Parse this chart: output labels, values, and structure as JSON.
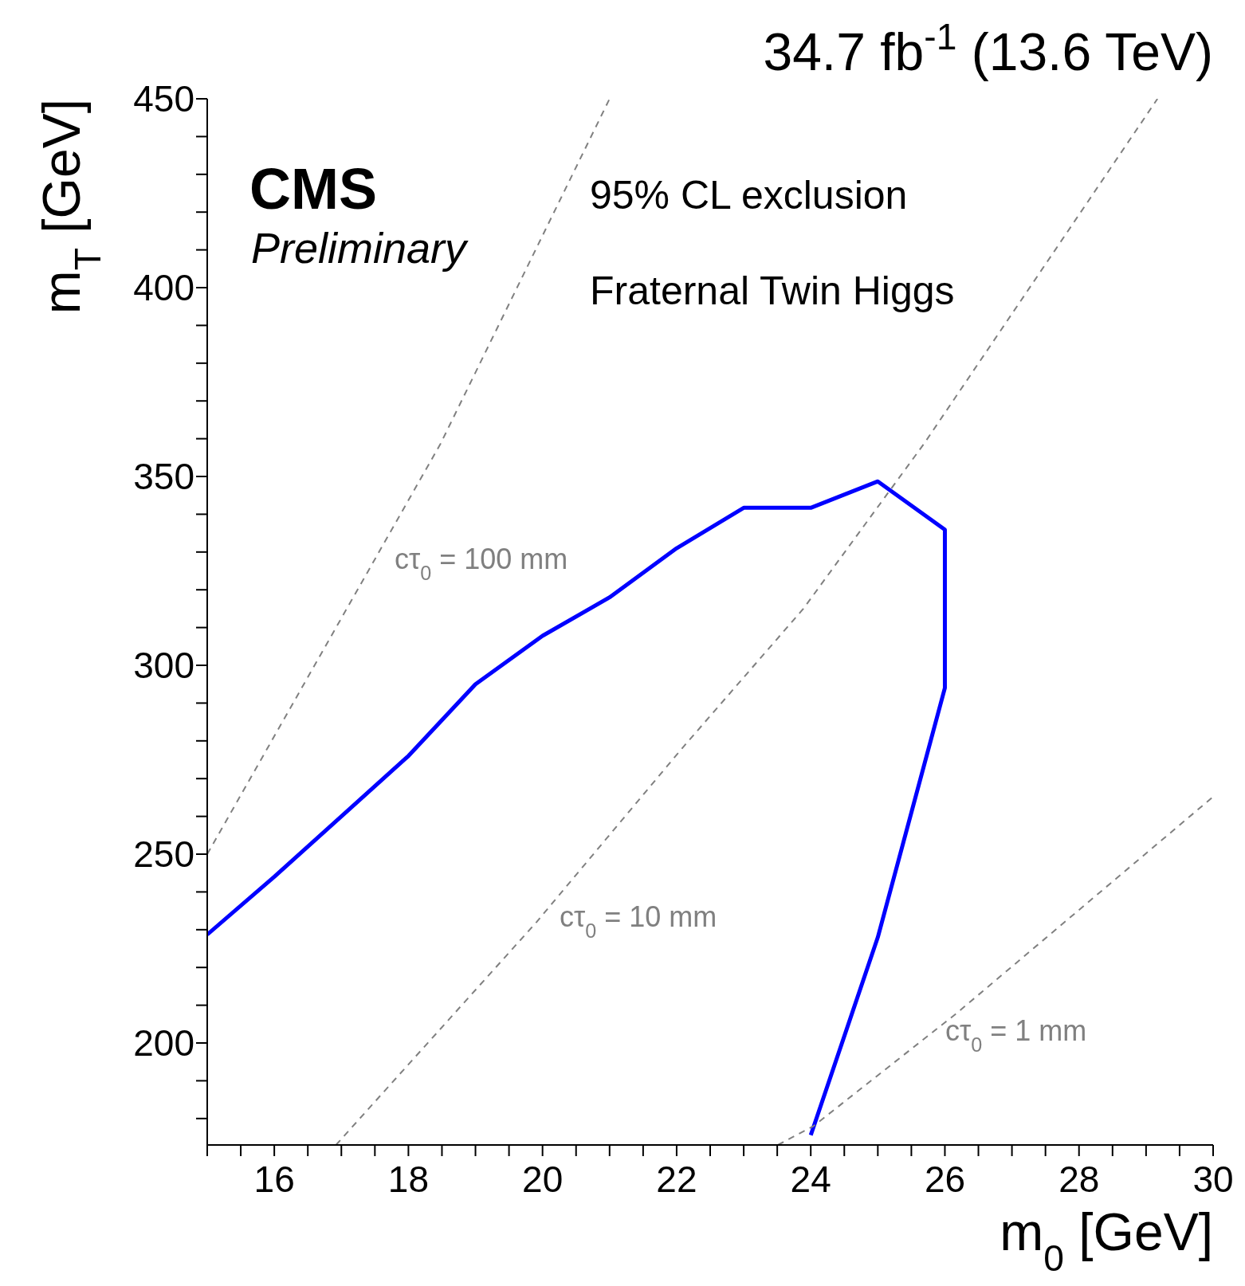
{
  "chart_data": {
    "type": "line",
    "title": "34.7 fb$^{-1}$ (13.6 TeV)",
    "xlabel": "m$_{0}$ [GeV]",
    "ylabel": "m$_{T}$ [GeV]",
    "xlim": [
      15,
      30
    ],
    "ylim": [
      173,
      450
    ],
    "xticks": [
      {
        "value": 15,
        "label": null
      },
      {
        "value": 15.5,
        "label": null
      },
      16,
      {
        "value": 16.5,
        "label": null
      },
      {
        "value": 17,
        "label": null
      },
      {
        "value": 17.5,
        "label": null
      },
      18,
      {
        "value": 18.5,
        "label": null
      },
      {
        "value": 19,
        "label": null
      },
      {
        "value": 19.5,
        "label": null
      },
      20,
      {
        "value": 20.5,
        "label": null
      },
      {
        "value": 21,
        "label": null
      },
      {
        "value": 21.5,
        "label": null
      },
      22,
      {
        "value": 22.5,
        "label": null
      },
      {
        "value": 23,
        "label": null
      },
      {
        "value": 23.5,
        "label": null
      },
      24,
      {
        "value": 24.5,
        "label": null
      },
      {
        "value": 25,
        "label": null
      },
      {
        "value": 25.5,
        "label": null
      },
      26,
      {
        "value": 26.5,
        "label": null
      },
      {
        "value": 27,
        "label": null
      },
      {
        "value": 27.5,
        "label": null
      },
      28,
      {
        "value": 28.5,
        "label": null
      },
      {
        "value": 29,
        "label": null
      },
      {
        "value": 29.5,
        "label": null
      },
      30
    ],
    "yticks": [
      {
        "value": 180,
        "label": null
      },
      {
        "value": 190,
        "label": null
      },
      200,
      {
        "value": 210,
        "label": null
      },
      {
        "value": 220,
        "label": null
      },
      {
        "value": 230,
        "label": null
      },
      {
        "value": 240,
        "label": null
      },
      250,
      {
        "value": 260,
        "label": null
      },
      {
        "value": 270,
        "label": null
      },
      {
        "value": 280,
        "label": null
      },
      {
        "value": 290,
        "label": null
      },
      300,
      {
        "value": 310,
        "label": null
      },
      {
        "value": 320,
        "label": null
      },
      {
        "value": 330,
        "label": null
      },
      {
        "value": 340,
        "label": null
      },
      350,
      {
        "value": 360,
        "label": null
      },
      {
        "value": 370,
        "label": null
      },
      {
        "value": 380,
        "label": null
      },
      {
        "value": 390,
        "label": null
      },
      400,
      {
        "value": 410,
        "label": null
      },
      {
        "value": 420,
        "label": null
      },
      {
        "value": 430,
        "label": null
      },
      {
        "value": 440,
        "label": null
      },
      450
    ],
    "series": [
      {
        "color": "#0000ff",
        "x": [
          15,
          16,
          18,
          19,
          20,
          21,
          22,
          23,
          24,
          25,
          26,
          26,
          25,
          24
        ],
        "values": [
          228.7,
          244,
          276,
          295,
          307.8,
          318,
          331,
          341.7,
          341.7,
          348.7,
          335.9,
          294,
          228,
          175.6
        ]
      },
      {
        "color": "#808080",
        "line_style": "dashed",
        "x": [
          15,
          18.48,
          21
        ],
        "values": [
          250,
          358.7,
          450
        ]
      },
      {
        "color": "#808080",
        "line_style": "dashed",
        "x": [
          16.92,
          19.91,
          22.08,
          23.89,
          25.69,
          29.17
        ],
        "values": [
          173,
          232,
          278,
          315,
          358.7,
          450
        ]
      },
      {
        "color": "#808080",
        "line_style": "dashed",
        "x": [
          23.51,
          24.04,
          26.17,
          30
        ],
        "values": [
          173,
          178,
          207.8,
          265.2
        ]
      }
    ],
    "annotations": [
      "CMS",
      "Preliminary",
      "95% CL exclusion",
      "Fraternal Twin Higgs",
      "cτ$_{0}$ = 100 mm",
      "cτ$_{0}$ = 10 mm",
      "cτ$_{0}$ = 1 mm"
    ]
  }
}
